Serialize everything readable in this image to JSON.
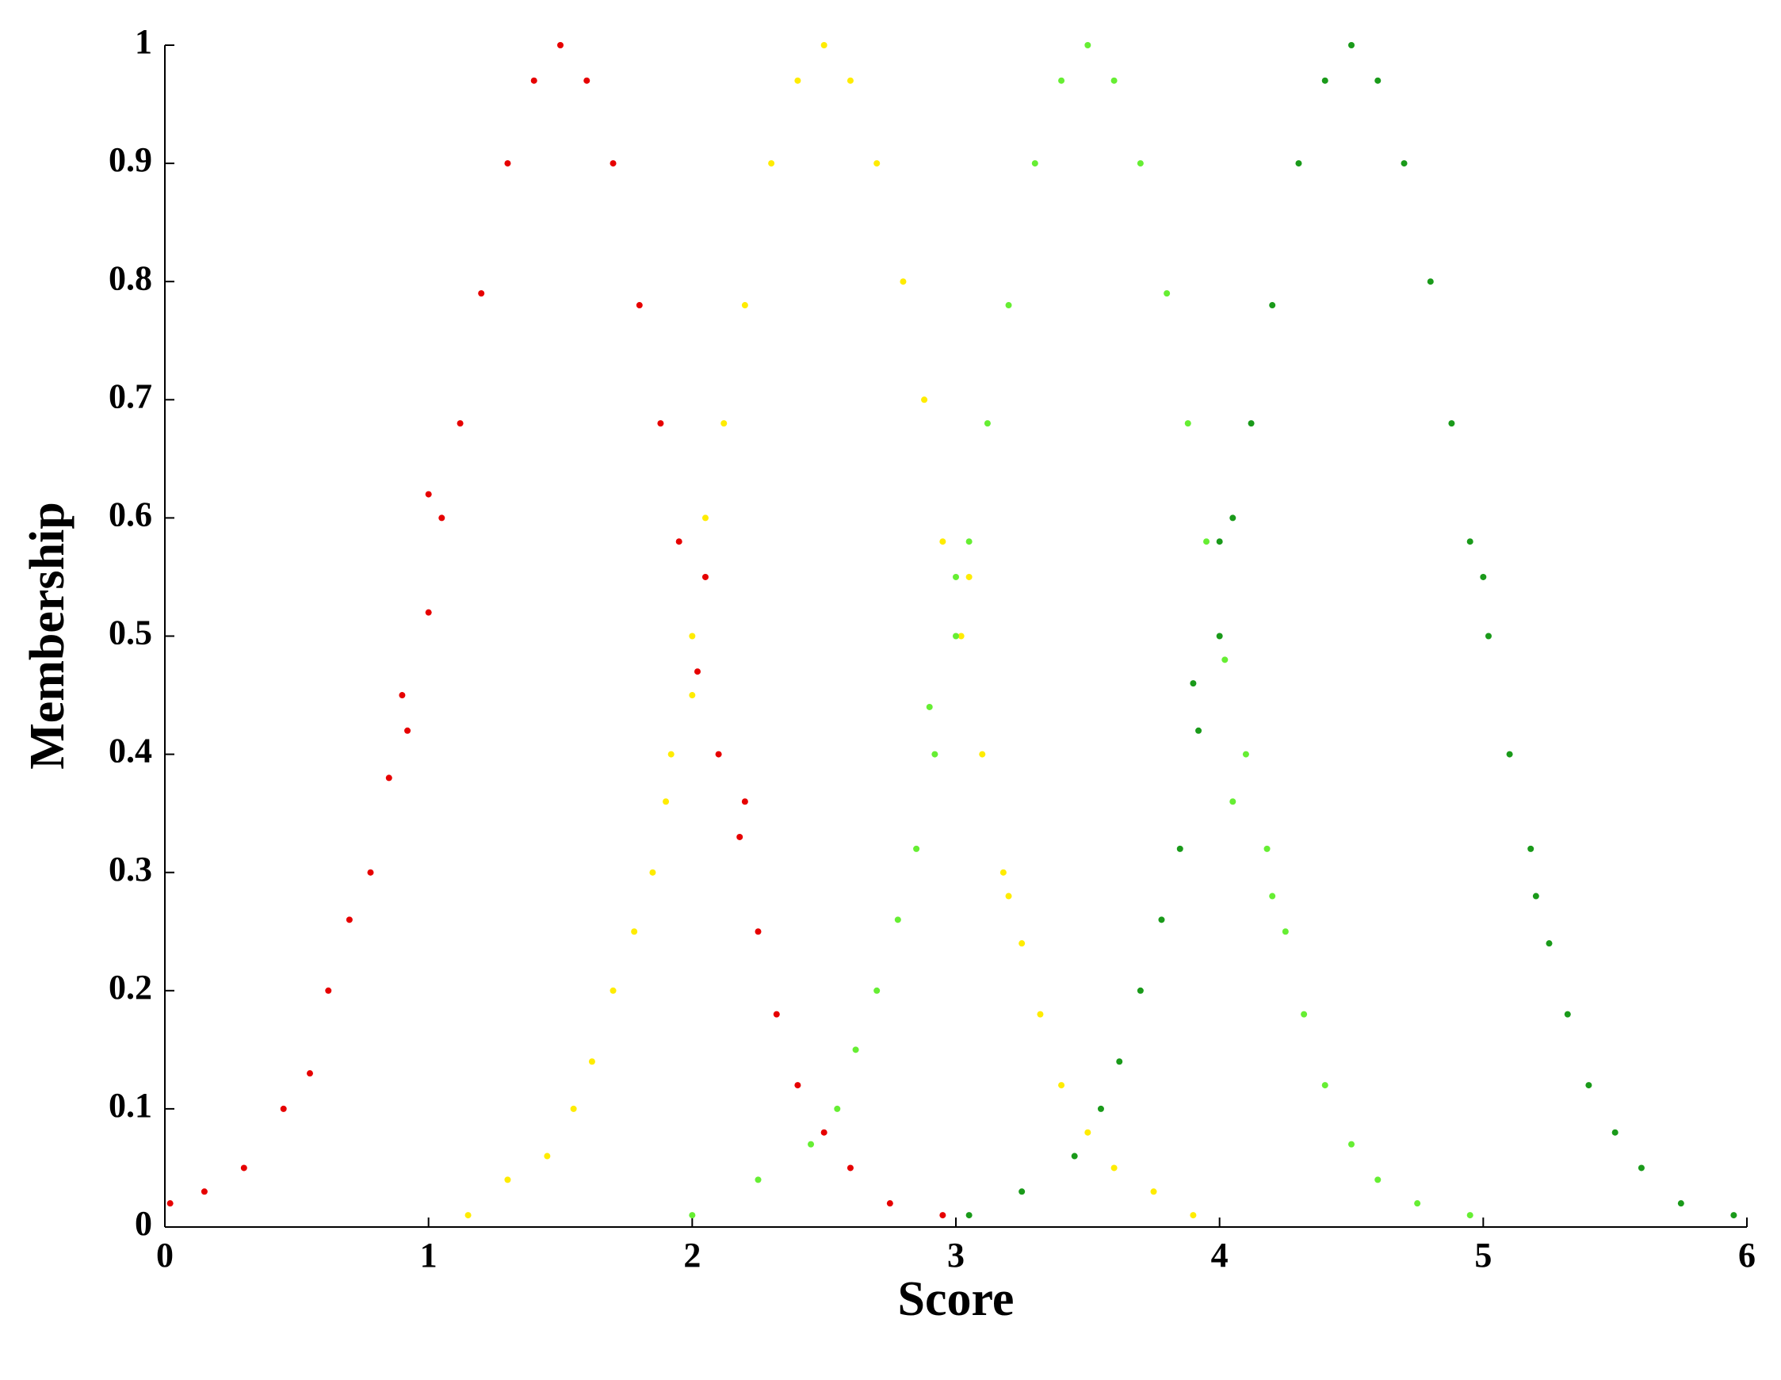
{
  "chart_data": {
    "type": "scatter",
    "xlabel": "Score",
    "ylabel": "Membership",
    "xlim": [
      0,
      6
    ],
    "xticks": [
      0,
      1,
      2,
      3,
      4,
      5,
      6
    ],
    "ylim": [
      0,
      1
    ],
    "yticks": [
      0,
      0.1,
      0.2,
      0.3,
      0.4,
      0.5,
      0.6,
      0.7,
      0.8,
      0.9,
      1
    ],
    "grid": false,
    "series": [
      {
        "color": "#e60000",
        "x": [
          0.02,
          0.15,
          0.3,
          0.45,
          0.55,
          0.62,
          0.7,
          0.78,
          0.85,
          0.92,
          1.0,
          1.05,
          1.12,
          1.2,
          1.3,
          1.4,
          1.5,
          1.6,
          1.7,
          1.8,
          1.88,
          1.95,
          2.02,
          2.1,
          2.18,
          2.25,
          2.32,
          2.4,
          2.5,
          2.6,
          2.75,
          2.95,
          0.9,
          1.0,
          2.05,
          2.2
        ],
        "values": [
          0.02,
          0.03,
          0.05,
          0.1,
          0.13,
          0.2,
          0.26,
          0.3,
          0.38,
          0.42,
          0.52,
          0.6,
          0.68,
          0.79,
          0.9,
          0.97,
          1,
          0.97,
          0.9,
          0.78,
          0.68,
          0.58,
          0.47,
          0.4,
          0.33,
          0.25,
          0.18,
          0.12,
          0.08,
          0.05,
          0.02,
          0.01,
          0.45,
          0.62,
          0.55,
          0.36
        ]
      },
      {
        "color": "#ffec00",
        "x": [
          1.15,
          1.3,
          1.45,
          1.55,
          1.62,
          1.7,
          1.78,
          1.85,
          1.92,
          2.0,
          2.05,
          2.12,
          2.2,
          2.3,
          2.4,
          2.5,
          2.6,
          2.7,
          2.8,
          2.88,
          2.95,
          3.02,
          3.1,
          3.18,
          3.25,
          3.32,
          3.4,
          3.5,
          3.6,
          3.75,
          3.9,
          1.9,
          2.0,
          3.05,
          3.2
        ],
        "values": [
          0.01,
          0.04,
          0.06,
          0.1,
          0.14,
          0.2,
          0.25,
          0.3,
          0.4,
          0.5,
          0.6,
          0.68,
          0.78,
          0.9,
          0.97,
          1,
          0.97,
          0.9,
          0.8,
          0.7,
          0.58,
          0.5,
          0.4,
          0.3,
          0.24,
          0.18,
          0.12,
          0.08,
          0.05,
          0.03,
          0.01,
          0.36,
          0.45,
          0.55,
          0.28
        ]
      },
      {
        "color": "#66ee33",
        "x": [
          2.0,
          2.25,
          2.45,
          2.55,
          2.62,
          2.7,
          2.78,
          2.85,
          2.92,
          3.0,
          3.05,
          3.12,
          3.2,
          3.3,
          3.4,
          3.5,
          3.6,
          3.7,
          3.8,
          3.88,
          3.95,
          4.02,
          4.1,
          4.18,
          4.25,
          4.32,
          4.4,
          4.5,
          4.6,
          4.75,
          4.95,
          2.9,
          3.0,
          4.05,
          4.2
        ],
        "values": [
          0.01,
          0.04,
          0.07,
          0.1,
          0.15,
          0.2,
          0.26,
          0.32,
          0.4,
          0.5,
          0.58,
          0.68,
          0.78,
          0.9,
          0.97,
          1,
          0.97,
          0.9,
          0.79,
          0.68,
          0.58,
          0.48,
          0.4,
          0.32,
          0.25,
          0.18,
          0.12,
          0.07,
          0.04,
          0.02,
          0.01,
          0.44,
          0.55,
          0.36,
          0.28
        ]
      },
      {
        "color": "#1a9a1a",
        "x": [
          3.05,
          3.25,
          3.45,
          3.55,
          3.62,
          3.7,
          3.78,
          3.85,
          3.92,
          4.0,
          4.05,
          4.12,
          4.2,
          4.3,
          4.4,
          4.5,
          4.6,
          4.7,
          4.8,
          4.88,
          4.95,
          5.02,
          5.1,
          5.18,
          5.25,
          5.32,
          5.4,
          5.5,
          5.6,
          5.75,
          5.95,
          3.9,
          4.0,
          5.0,
          5.2
        ],
        "values": [
          0.01,
          0.03,
          0.06,
          0.1,
          0.14,
          0.2,
          0.26,
          0.32,
          0.42,
          0.5,
          0.6,
          0.68,
          0.78,
          0.9,
          0.97,
          1,
          0.97,
          0.9,
          0.8,
          0.68,
          0.58,
          0.5,
          0.4,
          0.32,
          0.24,
          0.18,
          0.12,
          0.08,
          0.05,
          0.02,
          0.01,
          0.46,
          0.58,
          0.55,
          0.28
        ]
      }
    ]
  }
}
